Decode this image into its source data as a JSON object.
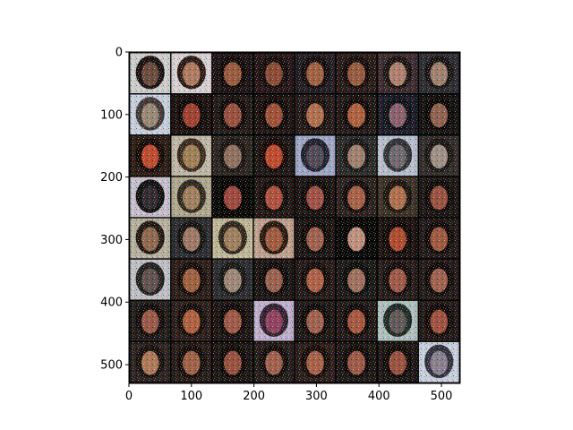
{
  "chart_data": {
    "type": "heatmap",
    "title": "",
    "xlabel": "",
    "ylabel": "",
    "xlim": [
      0,
      530
    ],
    "ylim": [
      530,
      0
    ],
    "grid": false,
    "xticks": [
      0,
      100,
      200,
      300,
      400,
      500
    ],
    "yticks": [
      0,
      100,
      200,
      300,
      400,
      500
    ],
    "image": {
      "description": "8x8 grid of generated face samples (noisy, high-saturation colors) separated by thin dark gutters",
      "rows": 8,
      "cols": 8,
      "tile_size": 64,
      "padding": 2,
      "background_color": "#000000"
    },
    "tiles": [
      {
        "bg": "#cfcfcf",
        "face": "#6a4a3e",
        "hair": "#1a1012"
      },
      {
        "bg": "#d8d2d6",
        "face": "#b07a62",
        "hair": "#2a1a16"
      },
      {
        "bg": "#1a1216",
        "face": "#9a5a40",
        "hair": "#120a0a"
      },
      {
        "bg": "#241418",
        "face": "#8a4a36",
        "hair": "#150c0c"
      },
      {
        "bg": "#201c22",
        "face": "#a06042",
        "hair": "#140c10"
      },
      {
        "bg": "#281a1a",
        "face": "#985a40",
        "hair": "#160c0c"
      },
      {
        "bg": "#3a2a30",
        "face": "#b08070",
        "hair": "#1a1414"
      },
      {
        "bg": "#2a2a30",
        "face": "#a08070",
        "hair": "#181416"
      },
      {
        "bg": "#c8d0e0",
        "face": "#9a8878",
        "hair": "#403838"
      },
      {
        "bg": "#1a1010",
        "face": "#a04030",
        "hair": "#100808"
      },
      {
        "bg": "#201818",
        "face": "#9a5040",
        "hair": "#120a0a"
      },
      {
        "bg": "#1c1212",
        "face": "#a05038",
        "hair": "#100808"
      },
      {
        "bg": "#241a1c",
        "face": "#b07050",
        "hair": "#1a1010"
      },
      {
        "bg": "#201818",
        "face": "#b06040",
        "hair": "#120a0a"
      },
      {
        "bg": "#1a1a28",
        "face": "#8a6070",
        "hair": "#101018"
      },
      {
        "bg": "#141010",
        "face": "#906050",
        "hair": "#0c0808"
      },
      {
        "bg": "#2a1a14",
        "face": "#c04a30",
        "hair": "#140a08"
      },
      {
        "bg": "#c0b8a8",
        "face": "#a08058",
        "hair": "#3a2a20"
      },
      {
        "bg": "#2a2420",
        "face": "#907060",
        "hair": "#1a1414"
      },
      {
        "bg": "#1c1616",
        "face": "#c04a30",
        "hair": "#180808"
      },
      {
        "bg": "#a0a8c8",
        "face": "#504858",
        "hair": "#202030"
      },
      {
        "bg": "#2a2a2a",
        "face": "#a08070",
        "hair": "#181818"
      },
      {
        "bg": "#b8c0d0",
        "face": "#706870",
        "hair": "#303038"
      },
      {
        "bg": "#302a2a",
        "face": "#a09088",
        "hair": "#1a1616"
      },
      {
        "bg": "#c8c0d0",
        "face": "#302830",
        "hair": "#101010"
      },
      {
        "bg": "#b0a890",
        "face": "#a08060",
        "hair": "#302820"
      },
      {
        "bg": "#080808",
        "face": "#a04840",
        "hair": "#060404"
      },
      {
        "bg": "#201616",
        "face": "#b05040",
        "hair": "#120a0a"
      },
      {
        "bg": "#1a1414",
        "face": "#a05048",
        "hair": "#100a0a"
      },
      {
        "bg": "#2a2020",
        "face": "#a86048",
        "hair": "#140c0c"
      },
      {
        "bg": "#3a3026",
        "face": "#b07050",
        "hair": "#1c1410"
      },
      {
        "bg": "#1a1414",
        "face": "#9a5040",
        "hair": "#100a0a"
      },
      {
        "bg": "#b8b0a0",
        "face": "#906850",
        "hair": "#201814"
      },
      {
        "bg": "#2a2a30",
        "face": "#a07868",
        "hair": "#141414"
      },
      {
        "bg": "#c0b898",
        "face": "#a08060",
        "hair": "#302820"
      },
      {
        "bg": "#c0a090",
        "face": "#a05a40",
        "hair": "#281810"
      },
      {
        "bg": "#1a1414",
        "face": "#a06050",
        "hair": "#100a0a"
      },
      {
        "bg": "#080808",
        "face": "#c09080",
        "hair": "#040404"
      },
      {
        "bg": "#1a1010",
        "face": "#b04a30",
        "hair": "#100808"
      },
      {
        "bg": "#201818",
        "face": "#a05840",
        "hair": "#120a0a"
      },
      {
        "bg": "#c0c0c8",
        "face": "#605050",
        "hair": "#202020"
      },
      {
        "bg": "#2a1c18",
        "face": "#a06040",
        "hair": "#140c0a"
      },
      {
        "bg": "#2a2a30",
        "face": "#a08878",
        "hair": "#181818"
      },
      {
        "bg": "#1a1414",
        "face": "#9a6050",
        "hair": "#100a0a"
      },
      {
        "bg": "#241818",
        "face": "#b06048",
        "hair": "#140c0c"
      },
      {
        "bg": "#1a1818",
        "face": "#a07060",
        "hair": "#0c0c0c"
      },
      {
        "bg": "#241a1a",
        "face": "#a05848",
        "hair": "#140c0c"
      },
      {
        "bg": "#201818",
        "face": "#a06050",
        "hair": "#120a0a"
      },
      {
        "bg": "#201a1a",
        "face": "#9a5848",
        "hair": "#120c0c"
      },
      {
        "bg": "#2a1c1a",
        "face": "#b06040",
        "hair": "#160c0a"
      },
      {
        "bg": "#1c1414",
        "face": "#a05848",
        "hair": "#100a0a"
      },
      {
        "bg": "#c0b0d0",
        "face": "#904060",
        "hair": "#302030"
      },
      {
        "bg": "#1c1616",
        "face": "#a06050",
        "hair": "#100a0a"
      },
      {
        "bg": "#201818",
        "face": "#a85840",
        "hair": "#120a0a"
      },
      {
        "bg": "#b0c0c0",
        "face": "#605858",
        "hair": "#202828"
      },
      {
        "bg": "#201616",
        "face": "#a05040",
        "hair": "#120a0a"
      },
      {
        "bg": "#2a2020",
        "face": "#b07858",
        "hair": "#161010"
      },
      {
        "bg": "#241a18",
        "face": "#a06048",
        "hair": "#140c0a"
      },
      {
        "bg": "#1a1414",
        "face": "#9a5040",
        "hair": "#100a0a"
      },
      {
        "bg": "#241c1c",
        "face": "#a06050",
        "hair": "#140c0c"
      },
      {
        "bg": "#2a1c1a",
        "face": "#a86048",
        "hair": "#160c0a"
      },
      {
        "bg": "#1c1616",
        "face": "#a05848",
        "hair": "#100a0a"
      },
      {
        "bg": "#1a1414",
        "face": "#9a5040",
        "hair": "#100a0a"
      },
      {
        "bg": "#c8d0e0",
        "face": "#8a8090",
        "hair": "#303040"
      }
    ]
  }
}
